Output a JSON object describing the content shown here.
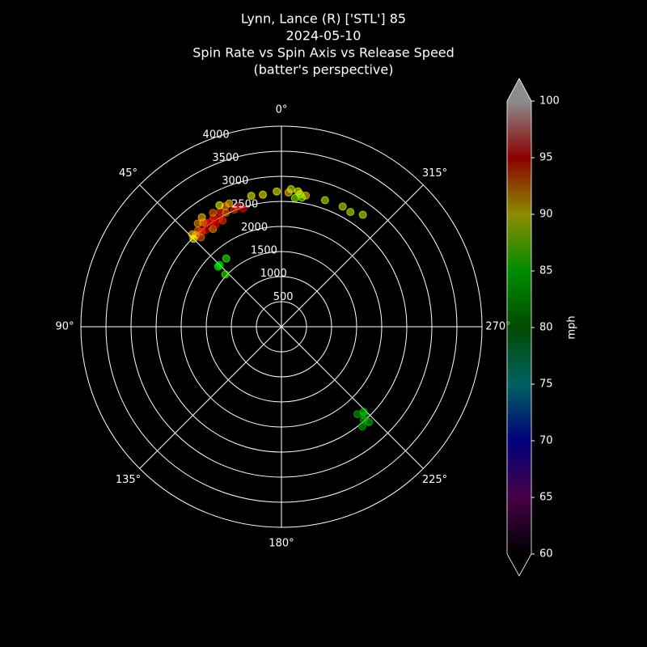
{
  "chart_data": {
    "type": "polar-scatter",
    "title_lines": [
      "Lynn, Lance (R) ['STL'] 85",
      "2024-05-10",
      "Spin Rate vs Spin Axis vs Release Speed",
      "(batter's perspective)"
    ],
    "theta": [
      36,
      41,
      18,
      23,
      13,
      8,
      38,
      40,
      43,
      42,
      37,
      34,
      32,
      30,
      28,
      26,
      25,
      35,
      44,
      39,
      33,
      29,
      20,
      22,
      31,
      45,
      36,
      27,
      2,
      356,
      352,
      349.5,
      353,
      357,
      351,
      341,
      333,
      329,
      324,
      354,
      39,
      46.5,
      47,
      45,
      221,
      223,
      222.5,
      219,
      221.5,
      224
    ],
    "values": [
      2560,
      2540,
      2480,
      2670,
      2680,
      2660,
      2450,
      2480,
      2500,
      2400,
      2600,
      2520,
      2560,
      2480,
      2600,
      2530,
      2650,
      2380,
      2560,
      2650,
      2420,
      2420,
      2560,
      2520,
      2650,
      2480,
      2700,
      2720,
      2700,
      2750,
      2670,
      2660,
      2720,
      2680,
      2610,
      2670,
      2690,
      2670,
      2760,
      2580,
      1750,
      1740,
      1530,
      1740,
      2310,
      2420,
      2580,
      2560,
      2480,
      2360
    ],
    "speed": [
      94,
      93,
      95,
      91,
      90,
      90,
      95,
      94,
      92,
      93,
      93,
      95,
      94,
      95,
      94,
      93,
      92,
      92,
      91,
      92,
      95,
      94,
      96,
      94,
      93,
      90,
      91,
      90,
      90,
      89,
      88,
      91,
      90,
      91,
      88,
      89,
      89,
      89,
      89,
      88,
      86,
      85,
      86,
      85,
      82,
      82,
      83,
      82,
      82,
      83
    ],
    "rlim": [
      0,
      4000
    ],
    "rticks": [
      500,
      1000,
      1500,
      2000,
      2500,
      3000,
      3500,
      4000
    ],
    "thetaticks": [
      {
        "value": 0,
        "label": "0°"
      },
      {
        "value": 45,
        "label": "45°"
      },
      {
        "value": 90,
        "label": "90°"
      },
      {
        "value": 135,
        "label": "135°"
      },
      {
        "value": 180,
        "label": "180°"
      },
      {
        "value": 225,
        "label": "225°"
      },
      {
        "value": 270,
        "label": "270°"
      },
      {
        "value": 315,
        "label": "315°"
      }
    ],
    "clim": [
      60,
      100
    ],
    "cticks": [
      60,
      65,
      70,
      75,
      80,
      85,
      90,
      95,
      100
    ],
    "colorbar_label": "mph",
    "colormap": [
      "#000000",
      "#800080",
      "#0000e0",
      "#00b0b0",
      "#008800",
      "#00ff00",
      "#ffff00",
      "#ff0000",
      "#ffffff"
    ],
    "grid": true
  }
}
